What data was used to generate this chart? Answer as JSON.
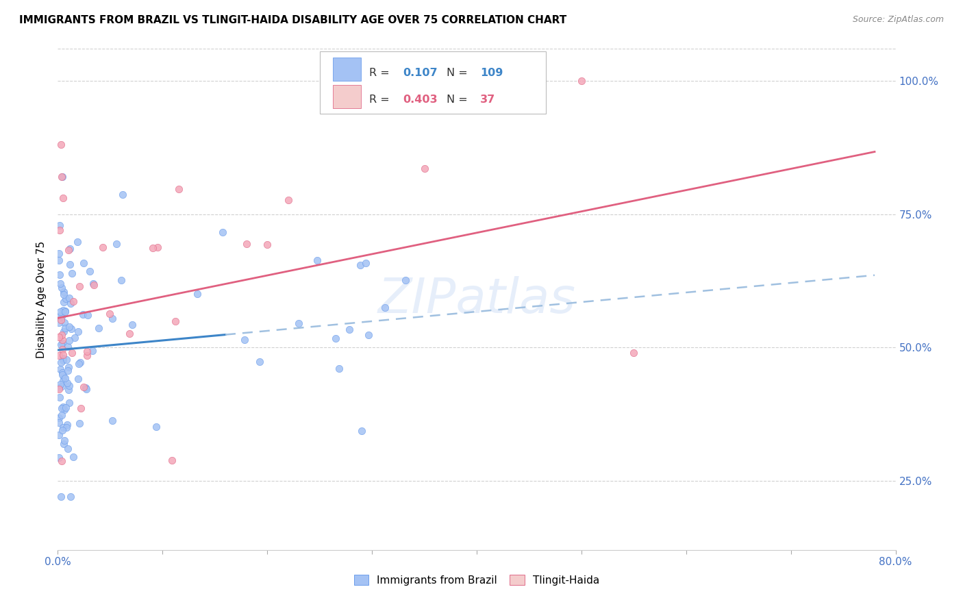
{
  "title": "IMMIGRANTS FROM BRAZIL VS TLINGIT-HAIDA DISABILITY AGE OVER 75 CORRELATION CHART",
  "source": "Source: ZipAtlas.com",
  "ylabel": "Disability Age Over 75",
  "R1": "0.107",
  "N1": "109",
  "R2": "0.403",
  "N2": "37",
  "blue_swatch": "#a4c2f4",
  "pink_swatch": "#f4cccc",
  "blue_dot_color": "#a4c2f4",
  "blue_dot_edge": "#6d9eeb",
  "pink_dot_color": "#f4a7b9",
  "pink_dot_edge": "#e06c8a",
  "blue_line_color": "#3d85c8",
  "blue_dash_color": "#a0c0e0",
  "pink_line_color": "#e06080",
  "xlim": [
    0.0,
    0.8
  ],
  "ylim": [
    0.12,
    1.06
  ],
  "yticks": [
    0.25,
    0.5,
    0.75,
    1.0
  ],
  "ytick_labels_right": [
    "25.0%",
    "50.0%",
    "75.0%",
    "100.0%"
  ],
  "xticks": [
    0.0,
    0.1,
    0.2,
    0.3,
    0.4,
    0.5,
    0.6,
    0.7,
    0.8
  ],
  "xtick_labels": [
    "0.0%",
    "",
    "",
    "",
    "",
    "",
    "",
    "",
    "80.0%"
  ],
  "grid_color": "#d0d0d0",
  "watermark": "ZIPatlas",
  "watermark_color": "#c8daf5",
  "legend_label1": "Immigrants from Brazil",
  "legend_label2": "Tlingit-Haida",
  "title_color": "#000000",
  "source_color": "#888888",
  "tick_color": "#4472c4"
}
